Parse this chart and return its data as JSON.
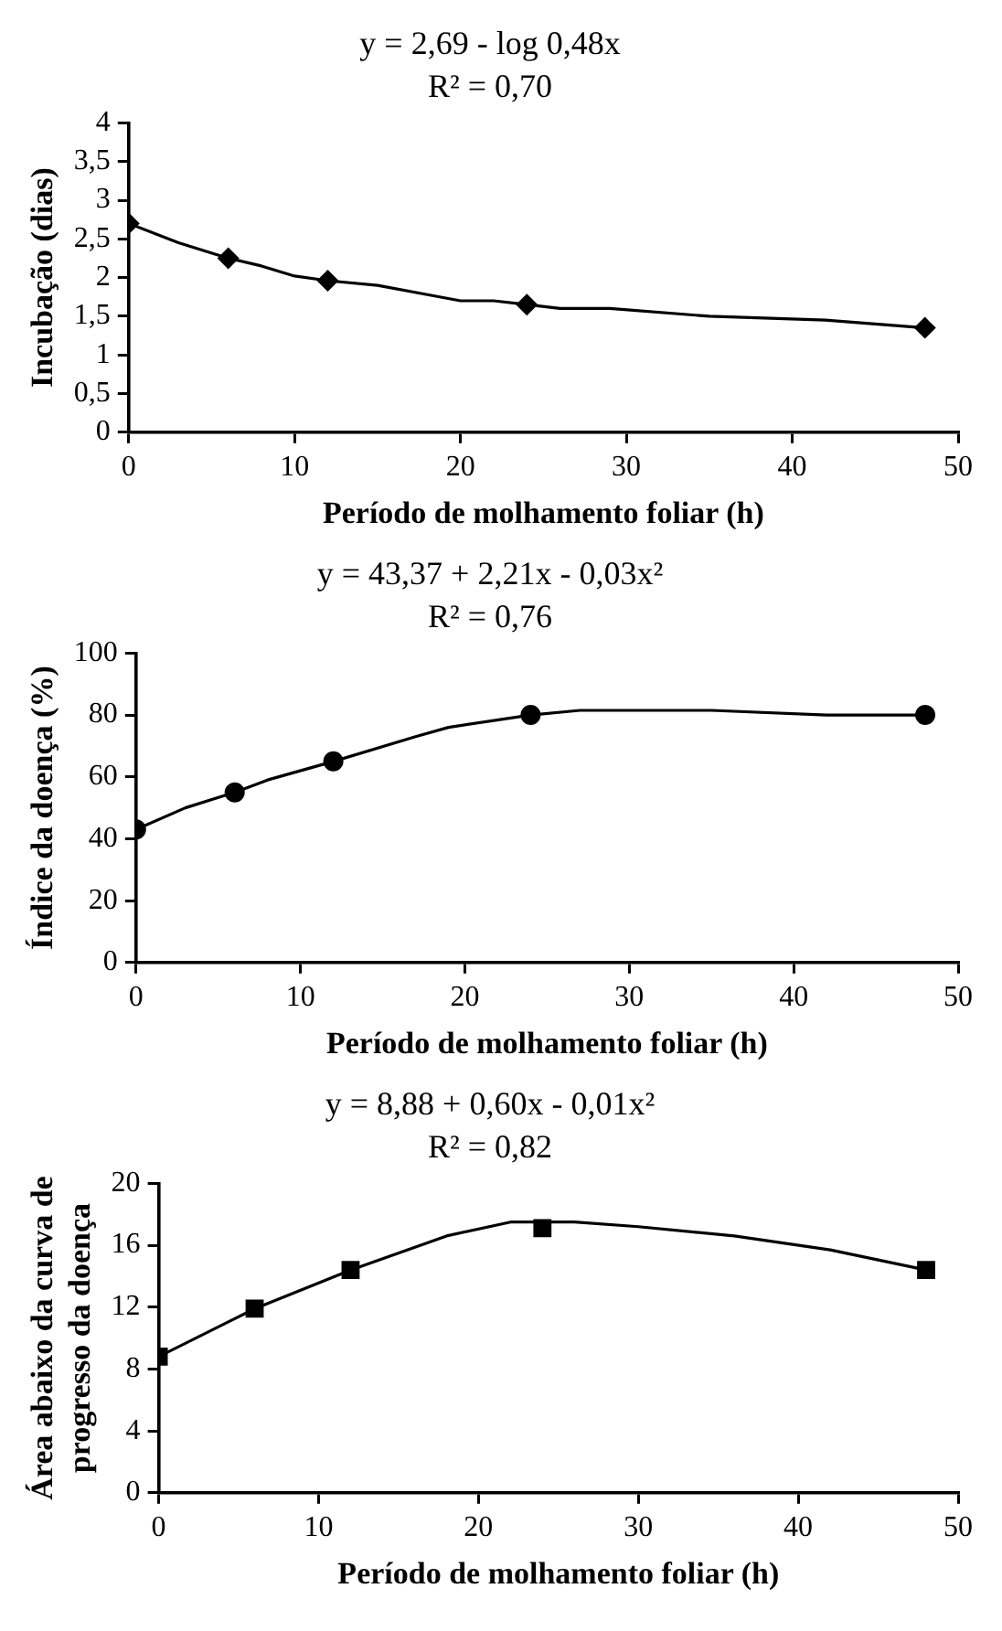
{
  "chart_data": [
    {
      "type": "scatter",
      "title": "y = 2,69 - log 0,48x",
      "subtitle": "R² = 0,70",
      "xlabel": "Período de molhamento foliar (h)",
      "ylabel": "Incubação (dias)",
      "xlim": [
        0,
        50
      ],
      "xticks": [
        0,
        10,
        20,
        30,
        40,
        50
      ],
      "ylim": [
        0,
        4
      ],
      "yticks": [
        0,
        {
          "value": 0.5,
          "label": "0,5"
        },
        1,
        {
          "value": 1.5,
          "label": "1,5"
        },
        2,
        {
          "value": 2.5,
          "label": "2,5"
        },
        3,
        {
          "value": 3.5,
          "label": "3,5"
        },
        4
      ],
      "grid": false,
      "legend": false,
      "series": [
        {
          "type": "scatter",
          "color": "#000000",
          "marker": "diamond",
          "x": [
            0,
            6,
            12,
            24,
            48
          ],
          "values": [
            2.7,
            2.25,
            1.96,
            1.65,
            1.35
          ]
        },
        {
          "type": "line",
          "color": "#000000",
          "marker": "none",
          "line_style": "solid",
          "x": [
            0,
            3,
            6,
            8,
            10,
            12,
            15,
            18,
            20,
            22,
            24,
            26,
            29,
            35,
            42,
            48
          ],
          "values": [
            2.7,
            2.45,
            2.25,
            2.15,
            2.02,
            1.96,
            1.9,
            1.78,
            1.7,
            1.7,
            1.65,
            1.6,
            1.6,
            1.5,
            1.45,
            1.35
          ]
        }
      ]
    },
    {
      "type": "scatter",
      "title": "y = 43,37 + 2,21x - 0,03x²",
      "subtitle": "R² = 0,76",
      "xlabel": "Período de molhamento foliar (h)",
      "ylabel": "Índice da doença (%)",
      "xlim": [
        0,
        50
      ],
      "xticks": [
        0,
        10,
        20,
        30,
        40,
        50
      ],
      "ylim": [
        0,
        100
      ],
      "yticks": [
        0,
        20,
        40,
        60,
        80,
        100
      ],
      "grid": false,
      "legend": false,
      "series": [
        {
          "type": "scatter",
          "color": "#000000",
          "marker": "circle",
          "x": [
            0,
            6,
            12,
            24,
            48
          ],
          "values": [
            43,
            55,
            65,
            80,
            80
          ]
        },
        {
          "type": "line",
          "color": "#000000",
          "marker": "none",
          "line_style": "solid",
          "x": [
            0,
            3,
            6,
            8,
            12,
            17,
            19,
            24,
            27,
            35,
            42,
            48
          ],
          "values": [
            43,
            50,
            55,
            59,
            65,
            73,
            76,
            80,
            81.5,
            81.5,
            80,
            80
          ]
        }
      ]
    },
    {
      "type": "scatter",
      "title": "y = 8,88 + 0,60x - 0,01x²",
      "subtitle": "R² = 0,82",
      "xlabel": "Período de molhamento foliar (h)",
      "ylabel": "Área abaixo da curva de progresso da doença",
      "xlim": [
        0,
        50
      ],
      "xticks": [
        0,
        10,
        20,
        30,
        40,
        50
      ],
      "ylim": [
        0,
        20
      ],
      "yticks": [
        0,
        4,
        8,
        12,
        16,
        20
      ],
      "grid": false,
      "legend": false,
      "series": [
        {
          "type": "scatter",
          "color": "#000000",
          "marker": "square",
          "x": [
            0,
            6,
            12,
            24,
            48
          ],
          "values": [
            8.8,
            11.9,
            14.4,
            17.1,
            14.4
          ]
        },
        {
          "type": "line",
          "color": "#000000",
          "marker": "none",
          "line_style": "solid",
          "x": [
            0,
            6,
            12,
            18,
            22,
            26,
            30,
            36,
            42,
            48
          ],
          "values": [
            8.8,
            11.9,
            14.4,
            16.6,
            17.5,
            17.5,
            17.2,
            16.6,
            15.7,
            14.4
          ]
        }
      ]
    }
  ]
}
